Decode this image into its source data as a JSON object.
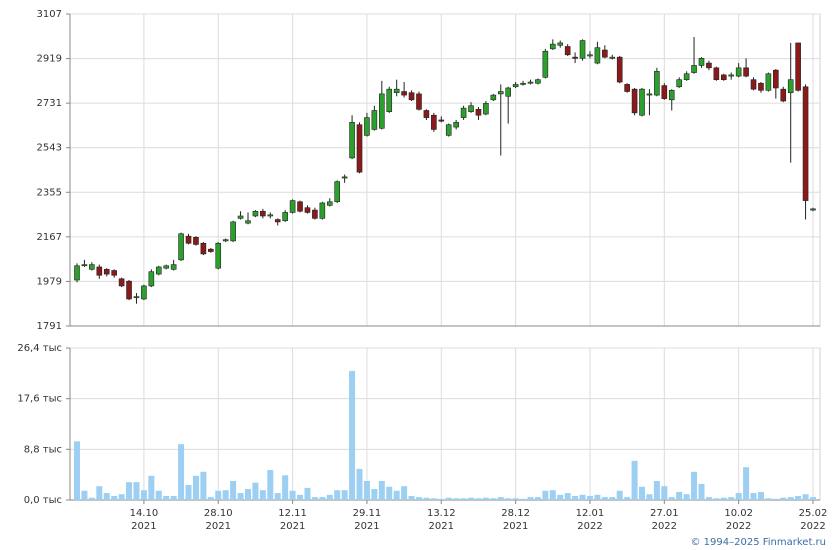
{
  "chart_data": [
    {
      "type": "candlestick",
      "up_color": "#2ca02c",
      "down_color": "#8b1a1a",
      "ylim": [
        1791,
        3107
      ],
      "yticks": [
        1791,
        1979,
        2167,
        2355,
        2543,
        2731,
        2919,
        3107
      ],
      "grid": true,
      "open": [
        1985,
        2045,
        2030,
        2040,
        2030,
        2025,
        1990,
        1980,
        1910,
        1905,
        1960,
        2010,
        2035,
        2030,
        2070,
        2170,
        2165,
        2140,
        2115,
        2035,
        2150,
        2150,
        2245,
        2225,
        2255,
        2275,
        2255,
        2240,
        2235,
        2270,
        2315,
        2290,
        2280,
        2245,
        2300,
        2315,
        2415,
        2500,
        2640,
        2595,
        2620,
        2625,
        2695,
        2775,
        2780,
        2775,
        2770,
        2700,
        2680,
        2660,
        2595,
        2630,
        2670,
        2695,
        2705,
        2685,
        2745,
        2770,
        2760,
        2800,
        2810,
        2815,
        2815,
        2840,
        2960,
        2975,
        2970,
        2925,
        2920,
        2930,
        2900,
        2955,
        2920,
        2925,
        2810,
        2790,
        2680,
        2765,
        2765,
        2805,
        2745,
        2800,
        2830,
        2860,
        2890,
        2900,
        2880,
        2850,
        2845,
        2845,
        2880,
        2830,
        2815,
        2785,
        2870,
        2790,
        2775,
        2985,
        2800,
        2280
      ],
      "high": [
        2055,
        2070,
        2060,
        2050,
        2035,
        2030,
        1995,
        1985,
        1930,
        1965,
        2030,
        2045,
        2050,
        2070,
        2185,
        2180,
        2170,
        2145,
        2120,
        2145,
        2160,
        2235,
        2275,
        2270,
        2280,
        2285,
        2270,
        2245,
        2280,
        2325,
        2320,
        2300,
        2290,
        2315,
        2330,
        2405,
        2430,
        2680,
        2650,
        2690,
        2720,
        2825,
        2800,
        2830,
        2820,
        2785,
        2780,
        2705,
        2690,
        2675,
        2645,
        2660,
        2720,
        2735,
        2715,
        2740,
        2770,
        2810,
        2800,
        2820,
        2825,
        2830,
        2835,
        2960,
        3000,
        2995,
        2980,
        2945,
        3000,
        2950,
        2990,
        2975,
        2935,
        2930,
        2815,
        2795,
        2795,
        2790,
        2880,
        2815,
        2790,
        2840,
        2865,
        3010,
        2925,
        2910,
        2885,
        2855,
        2860,
        2900,
        2920,
        2840,
        2820,
        2860,
        2875,
        2800,
        2985,
        2985,
        2810,
        2290
      ],
      "low": [
        1975,
        2040,
        2025,
        1990,
        2000,
        1995,
        1955,
        1900,
        1885,
        1900,
        1955,
        2005,
        2030,
        2025,
        2065,
        2135,
        2130,
        2090,
        2100,
        2030,
        2145,
        2145,
        2240,
        2220,
        2250,
        2245,
        2245,
        2215,
        2230,
        2265,
        2270,
        2265,
        2240,
        2240,
        2295,
        2310,
        2395,
        2495,
        2435,
        2590,
        2615,
        2620,
        2690,
        2760,
        2755,
        2740,
        2700,
        2660,
        2610,
        2650,
        2590,
        2620,
        2660,
        2690,
        2660,
        2680,
        2740,
        2510,
        2645,
        2795,
        2805,
        2810,
        2810,
        2835,
        2955,
        2965,
        2930,
        2900,
        2910,
        2920,
        2895,
        2920,
        2915,
        2815,
        2775,
        2680,
        2675,
        2680,
        2760,
        2745,
        2700,
        2795,
        2825,
        2855,
        2880,
        2870,
        2825,
        2825,
        2830,
        2840,
        2840,
        2785,
        2775,
        2780,
        2750,
        2735,
        2480,
        2780,
        2240,
        2275
      ],
      "close": [
        2045,
        2050,
        2050,
        2005,
        2010,
        2005,
        1960,
        1905,
        1915,
        1960,
        2020,
        2040,
        2045,
        2050,
        2180,
        2140,
        2135,
        2095,
        2105,
        2140,
        2155,
        2230,
        2255,
        2235,
        2275,
        2255,
        2260,
        2230,
        2270,
        2320,
        2275,
        2270,
        2245,
        2310,
        2315,
        2400,
        2420,
        2650,
        2440,
        2670,
        2700,
        2770,
        2790,
        2790,
        2765,
        2745,
        2705,
        2670,
        2620,
        2655,
        2640,
        2650,
        2710,
        2720,
        2680,
        2730,
        2765,
        2780,
        2795,
        2810,
        2815,
        2820,
        2830,
        2950,
        2980,
        2985,
        2935,
        2920,
        2995,
        2935,
        2965,
        2925,
        2925,
        2820,
        2780,
        2690,
        2790,
        2770,
        2865,
        2750,
        2785,
        2830,
        2855,
        2890,
        2920,
        2880,
        2830,
        2830,
        2850,
        2880,
        2845,
        2790,
        2785,
        2855,
        2795,
        2740,
        2830,
        2785,
        2320,
        2285
      ]
    },
    {
      "type": "bar",
      "color": "#9ccff2",
      "ylim": [
        0,
        26.4
      ],
      "yticks": [
        {
          "value": 0,
          "label": "0,0 тыс"
        },
        {
          "value": 8.8,
          "label": "8,8 тыс"
        },
        {
          "value": 17.6,
          "label": "17,6 тыс"
        },
        {
          "value": 26.4,
          "label": "26,4 тыс"
        }
      ],
      "grid": true,
      "categories": [
        null,
        null,
        null,
        null,
        null,
        null,
        null,
        null,
        null,
        "14.10 2021",
        null,
        null,
        null,
        null,
        null,
        null,
        null,
        null,
        null,
        "28.10 2021",
        null,
        null,
        null,
        null,
        null,
        null,
        null,
        null,
        null,
        "12.11 2021",
        null,
        null,
        null,
        null,
        null,
        null,
        null,
        null,
        null,
        "29.11 2021",
        null,
        null,
        null,
        null,
        null,
        null,
        null,
        null,
        null,
        "13.12 2021",
        null,
        null,
        null,
        null,
        null,
        null,
        null,
        null,
        null,
        "28.12 2021",
        null,
        null,
        null,
        null,
        null,
        null,
        null,
        null,
        null,
        "12.01 2022",
        null,
        null,
        null,
        null,
        null,
        null,
        null,
        null,
        null,
        "27.01 2022",
        null,
        null,
        null,
        null,
        null,
        null,
        null,
        null,
        null,
        "10.02 2022",
        null,
        null,
        null,
        null,
        null,
        null,
        null,
        null,
        null,
        "25.02 2022"
      ],
      "values": [
        10.2,
        1.6,
        0.4,
        2.4,
        1.2,
        0.7,
        1.0,
        3.1,
        3.1,
        1.7,
        4.2,
        1.6,
        0.7,
        0.7,
        9.7,
        2.6,
        4.2,
        4.9,
        0.5,
        1.6,
        1.7,
        3.3,
        1.2,
        1.9,
        3.0,
        1.7,
        5.2,
        1.2,
        4.3,
        1.6,
        0.9,
        2.1,
        0.5,
        0.5,
        0.9,
        1.7,
        1.7,
        22.4,
        5.4,
        3.3,
        1.9,
        3.3,
        2.3,
        1.6,
        2.4,
        0.7,
        0.5,
        0.4,
        0.3,
        0.2,
        0.4,
        0.3,
        0.3,
        0.4,
        0.3,
        0.4,
        0.3,
        0.5,
        0.3,
        0.3,
        0.2,
        0.5,
        0.5,
        1.6,
        1.7,
        0.9,
        1.2,
        0.7,
        0.9,
        0.7,
        0.9,
        0.5,
        0.5,
        1.6,
        0.5,
        6.8,
        2.3,
        1.0,
        3.3,
        2.4,
        0.5,
        1.4,
        1.0,
        4.9,
        2.8,
        0.5,
        0.3,
        0.4,
        0.5,
        1.2,
        5.7,
        1.2,
        1.4,
        0.3,
        0.2,
        0.4,
        0.5,
        0.7,
        1.0,
        0.5
      ]
    }
  ],
  "footer": "© 1994–2025 Finmarket.ru"
}
